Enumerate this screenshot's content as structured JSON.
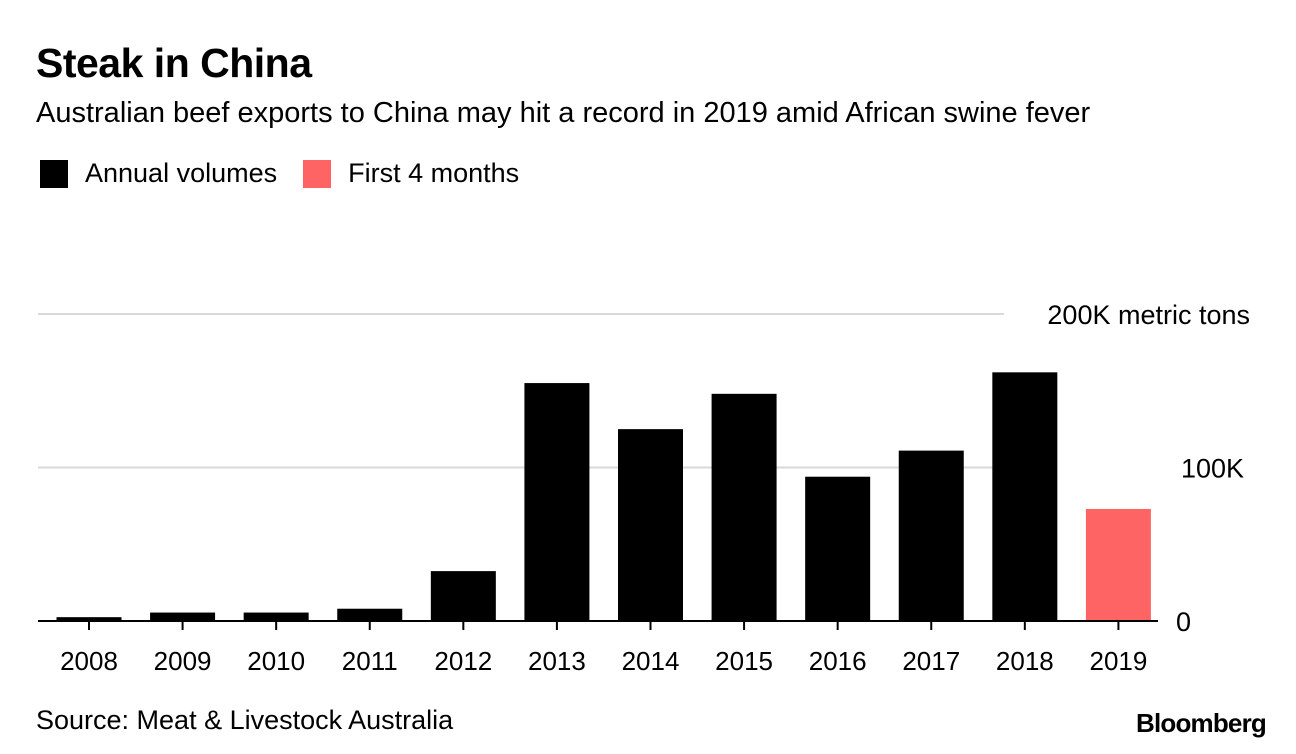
{
  "header": {
    "title": "Steak in China",
    "subtitle": "Australian beef exports to China may hit a record in 2019 amid African swine fever"
  },
  "legend": [
    {
      "label": "Annual volumes",
      "color": "#000000"
    },
    {
      "label": "First 4 months",
      "color": "#ff6464"
    }
  ],
  "footer": {
    "source": "Source: Meat & Livestock Australia",
    "brand": "Bloomberg"
  },
  "chart_data": {
    "type": "bar",
    "title": "Steak in China",
    "ylabel": "metric tons",
    "categories": [
      "2008",
      "2009",
      "2010",
      "2011",
      "2012",
      "2013",
      "2014",
      "2015",
      "2016",
      "2017",
      "2018",
      "2019"
    ],
    "values": [
      2500,
      5500,
      5500,
      8000,
      32500,
      155000,
      125000,
      148000,
      94000,
      111000,
      162000,
      73000
    ],
    "series_by_bar": [
      "Annual volumes",
      "Annual volumes",
      "Annual volumes",
      "Annual volumes",
      "Annual volumes",
      "Annual volumes",
      "Annual volumes",
      "Annual volumes",
      "Annual volumes",
      "Annual volumes",
      "Annual volumes",
      "First 4 months"
    ],
    "ylim": [
      0,
      200000
    ],
    "yticks": [
      {
        "value": 0,
        "label": "0"
      },
      {
        "value": 100000,
        "label": "100K"
      },
      {
        "value": 200000,
        "label": "200K metric tons"
      }
    ],
    "grid": true
  }
}
